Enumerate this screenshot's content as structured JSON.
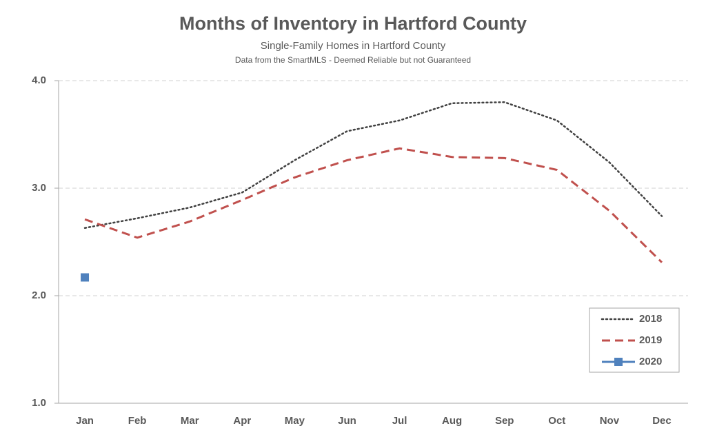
{
  "chart_data": {
    "type": "line",
    "title": "Months of Inventory in Hartford County",
    "subtitle": "Single-Family Homes in Hartford County",
    "source": "Data from the SmartMLS - Deemed Reliable but not Guaranteed",
    "categories": [
      "Jan",
      "Feb",
      "Mar",
      "Apr",
      "May",
      "Jun",
      "Jul",
      "Aug",
      "Sep",
      "Oct",
      "Nov",
      "Dec"
    ],
    "series": [
      {
        "name": "2018",
        "color": "#404040",
        "style": "dotted",
        "values": [
          2.63,
          2.72,
          2.82,
          2.96,
          3.26,
          3.53,
          3.63,
          3.79,
          3.8,
          3.63,
          3.24,
          2.74
        ]
      },
      {
        "name": "2019",
        "color": "#c0504d",
        "style": "dashed",
        "values": [
          2.71,
          2.54,
          2.69,
          2.89,
          3.1,
          3.26,
          3.37,
          3.29,
          3.28,
          3.17,
          2.79,
          2.31
        ]
      },
      {
        "name": "2020",
        "color": "#4f81bd",
        "style": "solid",
        "marker": "square",
        "values": [
          2.17,
          null,
          null,
          null,
          null,
          null,
          null,
          null,
          null,
          null,
          null,
          null
        ]
      }
    ],
    "ylim": [
      1.0,
      4.0
    ],
    "yticks": [
      {
        "value": 1.0,
        "label": "1.0"
      },
      {
        "value": 2.0,
        "label": "2.0"
      },
      {
        "value": 3.0,
        "label": "3.0"
      },
      {
        "value": 4.0,
        "label": "4.0"
      }
    ],
    "grid": true,
    "legend": "bottom-right"
  }
}
